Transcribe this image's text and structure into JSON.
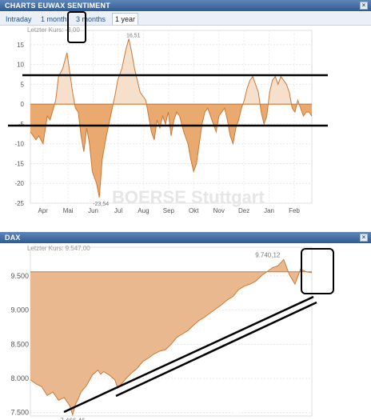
{
  "panel1": {
    "title": "CHARTS EUWAX SENTIMENT",
    "close_icon": "close-icon",
    "tabs": [
      {
        "label": "Intraday",
        "active": false
      },
      {
        "label": "1 month",
        "active": false
      },
      {
        "label": "3 months",
        "active": false
      },
      {
        "label": "1 year",
        "active": true
      }
    ],
    "last_label": "Letzter Kurs: -3,00",
    "watermark": "BOERSE Stuttgart"
  },
  "panel2": {
    "title": "DAX",
    "last_label": "Letzter Kurs: 9.547,00",
    "watermark": "BOERSE Stuttgart"
  },
  "colors": {
    "fill_negative": "#e9a96f",
    "fill_positive": "#f6e0cc",
    "line": "#c77a3a",
    "header": "#2f5a91",
    "dax_fill": "#eab88e"
  },
  "chart_data": [
    {
      "type": "area",
      "ylim": [
        -25,
        17
      ],
      "yticks": [
        15,
        10,
        5,
        0,
        -5,
        -10,
        -15,
        -20,
        -25
      ],
      "xticks": [
        "Apr",
        "Mai",
        "Jun",
        "Jul",
        "Aug",
        "Sep",
        "Okt",
        "Nov",
        "Dez",
        "Jan",
        "Feb"
      ],
      "annotations": [
        {
          "text": "16,51",
          "x": 0.36,
          "y": 16.51
        },
        {
          "text": "-23,54",
          "x": 0.245,
          "y": -23.54
        }
      ],
      "x": [
        0,
        0.01,
        0.02,
        0.03,
        0.045,
        0.06,
        0.07,
        0.09,
        0.1,
        0.115,
        0.13,
        0.14,
        0.15,
        0.16,
        0.17,
        0.18,
        0.19,
        0.2,
        0.21,
        0.22,
        0.235,
        0.245,
        0.255,
        0.27,
        0.285,
        0.3,
        0.31,
        0.325,
        0.34,
        0.35,
        0.36,
        0.37,
        0.38,
        0.39,
        0.4,
        0.41,
        0.42,
        0.43,
        0.44,
        0.45,
        0.46,
        0.47,
        0.48,
        0.49,
        0.5,
        0.51,
        0.52,
        0.53,
        0.545,
        0.56,
        0.57,
        0.58,
        0.59,
        0.6,
        0.61,
        0.62,
        0.63,
        0.64,
        0.65,
        0.66,
        0.67,
        0.68,
        0.69,
        0.7,
        0.71,
        0.72,
        0.73,
        0.74,
        0.75,
        0.76,
        0.77,
        0.78,
        0.79,
        0.8,
        0.81,
        0.82,
        0.83,
        0.84,
        0.85,
        0.86,
        0.87,
        0.88,
        0.89,
        0.9,
        0.91,
        0.92,
        0.93,
        0.94,
        0.95,
        0.96,
        0.97,
        0.98,
        0.99,
        1.0
      ],
      "values": [
        -7,
        -8,
        -9,
        -8,
        -10,
        -3,
        -4,
        1,
        7,
        9,
        13,
        8,
        3,
        -1,
        -2,
        -8,
        -12,
        -6,
        -10,
        -17,
        -20,
        -23.54,
        -14,
        -8,
        -3,
        2,
        6,
        9,
        14,
        16.51,
        13,
        9,
        6,
        3,
        2,
        1,
        -3,
        -7,
        -9,
        -4,
        -6,
        -3,
        -5,
        -2,
        -8,
        -4,
        -2,
        -3,
        -7,
        -10,
        -14,
        -17,
        -15,
        -10,
        -5,
        -2,
        -1,
        -3,
        -5,
        -7,
        -3,
        -2,
        -1,
        -4,
        -8,
        -10,
        -6,
        -4,
        -1,
        1,
        4,
        6,
        7,
        5,
        3,
        -2,
        -5,
        -3,
        3,
        6,
        7,
        5,
        7,
        6,
        5,
        3,
        -1,
        -2,
        1,
        -1,
        -3,
        -2,
        -2,
        -3
      ],
      "ref": 0
    },
    {
      "type": "area",
      "ylim": [
        7450,
        9850
      ],
      "yticks": [
        9500,
        9000,
        8500,
        8000,
        7500
      ],
      "annotations": [
        {
          "text": "9.740,12",
          "x": 0.9,
          "y": 9740.12
        },
        {
          "text": "7.466,46",
          "x": 0.15,
          "y": 7466.46
        }
      ],
      "x": [
        0,
        0.02,
        0.04,
        0.06,
        0.08,
        0.1,
        0.12,
        0.14,
        0.15,
        0.16,
        0.17,
        0.18,
        0.2,
        0.22,
        0.24,
        0.25,
        0.26,
        0.28,
        0.3,
        0.31,
        0.32,
        0.34,
        0.36,
        0.38,
        0.4,
        0.42,
        0.44,
        0.46,
        0.48,
        0.5,
        0.52,
        0.54,
        0.56,
        0.58,
        0.6,
        0.62,
        0.64,
        0.66,
        0.68,
        0.7,
        0.72,
        0.74,
        0.76,
        0.78,
        0.8,
        0.82,
        0.84,
        0.86,
        0.88,
        0.9,
        0.92,
        0.94,
        0.96,
        0.98,
        1.0
      ],
      "values": [
        7980,
        7920,
        7880,
        7750,
        7800,
        7680,
        7720,
        7600,
        7466.46,
        7620,
        7700,
        7800,
        7900,
        8050,
        8120,
        8060,
        8100,
        8050,
        7980,
        7860,
        7900,
        8000,
        8080,
        8150,
        8250,
        8300,
        8360,
        8400,
        8420,
        8500,
        8600,
        8650,
        8700,
        8780,
        8850,
        8900,
        8960,
        9020,
        9080,
        9150,
        9200,
        9300,
        9350,
        9380,
        9420,
        9500,
        9560,
        9620,
        9650,
        9740.12,
        9520,
        9380,
        9600,
        9560,
        9547
      ],
      "ref": 9560
    }
  ]
}
